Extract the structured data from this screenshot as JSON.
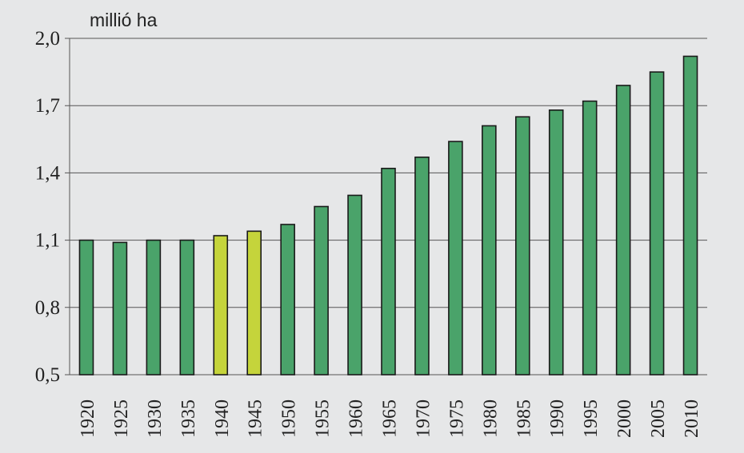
{
  "chart_data": {
    "type": "bar",
    "title": "",
    "xlabel": "",
    "ylabel": "millió ha",
    "ylim": [
      0.5,
      2.0
    ],
    "yticks": [
      0.5,
      0.8,
      1.1,
      1.4,
      1.7,
      2.0
    ],
    "ytick_labels": [
      "0,5",
      "0,8",
      "1,1",
      "1,4",
      "1,7",
      "2,0"
    ],
    "grid": true,
    "categories": [
      "1920",
      "1925",
      "1930",
      "1935",
      "1940",
      "1945",
      "1950",
      "1955",
      "1960",
      "1965",
      "1970",
      "1975",
      "1980",
      "1985",
      "1990",
      "1995",
      "2000",
      "2005",
      "2010"
    ],
    "values": [
      1.1,
      1.09,
      1.1,
      1.1,
      1.12,
      1.14,
      1.17,
      1.25,
      1.3,
      1.42,
      1.47,
      1.54,
      1.61,
      1.65,
      1.68,
      1.72,
      1.79,
      1.85,
      1.92
    ],
    "highlight_categories": [
      "1940",
      "1945"
    ],
    "colors": {
      "bar": "#4aa36a",
      "bar_highlight": "#c5d43b",
      "bar_stroke": "#1a1a1a",
      "grid": "#555555",
      "axis": "#555555",
      "background": "#e6e7e8",
      "text": "#222222"
    }
  }
}
